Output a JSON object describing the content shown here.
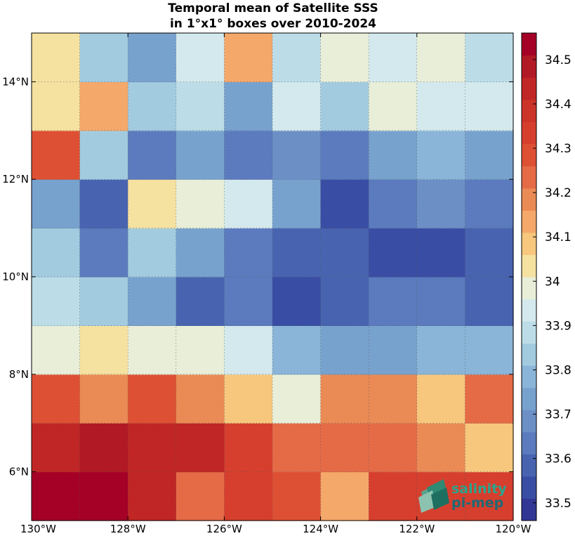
{
  "chart_data": {
    "type": "heatmap",
    "title_lines": [
      "Temporal mean of Satellite SSS",
      "in 1°x1° boxes over 2010-2024"
    ],
    "x": [
      -130,
      -129,
      -128,
      -127,
      -126,
      -125,
      -124,
      -123,
      -122,
      -121,
      -120
    ],
    "y": [
      5,
      6,
      7,
      8,
      9,
      10,
      11,
      12,
      13,
      14,
      15
    ],
    "xlim": [
      -130,
      -120
    ],
    "ylim": [
      5,
      15
    ],
    "x_ticks": [
      -130,
      -128,
      -126,
      -124,
      -122,
      -120
    ],
    "x_tick_labels": [
      "130°W",
      "128°W",
      "126°W",
      "124°W",
      "122°W",
      "120°W"
    ],
    "y_ticks": [
      6,
      8,
      10,
      12,
      14
    ],
    "y_tick_labels": [
      "6°N",
      "8°N",
      "10°N",
      "12°N",
      "14°N"
    ],
    "grid": true,
    "values": [
      [
        34.52,
        34.56,
        34.42,
        34.22,
        34.36,
        34.29,
        34.12,
        34.36,
        34.35,
        34.36
      ],
      [
        34.42,
        34.5,
        34.42,
        34.46,
        34.36,
        34.22,
        34.22,
        34.22,
        34.17,
        34.11
      ],
      [
        34.29,
        34.17,
        34.29,
        34.17,
        34.11,
        33.98,
        34.17,
        34.17,
        34.11,
        34.22
      ],
      [
        33.98,
        34.04,
        33.98,
        33.98,
        33.92,
        33.78,
        33.74,
        33.74,
        33.8,
        33.8
      ],
      [
        33.88,
        33.82,
        33.74,
        33.56,
        33.66,
        33.52,
        33.58,
        33.64,
        33.62,
        33.58
      ],
      [
        33.82,
        33.66,
        33.82,
        33.74,
        33.64,
        33.6,
        33.56,
        33.52,
        33.52,
        33.58
      ],
      [
        33.76,
        33.6,
        34.05,
        33.98,
        33.92,
        33.76,
        33.52,
        33.66,
        33.68,
        33.62
      ],
      [
        34.29,
        33.86,
        33.66,
        33.74,
        33.66,
        33.68,
        33.66,
        33.74,
        33.78,
        33.72
      ],
      [
        34.05,
        34.12,
        33.82,
        33.9,
        33.74,
        33.92,
        33.82,
        33.98,
        33.92,
        33.92
      ],
      [
        34.05,
        33.86,
        33.74,
        33.92,
        34.12,
        33.9,
        33.98,
        33.92,
        33.98,
        33.9
      ]
    ],
    "colorbar": {
      "vmin": 33.46,
      "vmax": 34.56,
      "bins": 22,
      "ticks": [
        33.5,
        33.6,
        33.7,
        33.8,
        33.9,
        34.0,
        34.1,
        34.2,
        34.3,
        34.4,
        34.5
      ],
      "tick_labels": [
        "33.5",
        "33.6",
        "33.7",
        "33.8",
        "33.9",
        "34",
        "34.1",
        "34.2",
        "34.3",
        "34.4",
        "34.5"
      ],
      "colors": [
        "#313695",
        "#3a4da4",
        "#4864b0",
        "#5b7bbe",
        "#6c8fc6",
        "#78a2ce",
        "#8ab5d8",
        "#a2cbe0",
        "#bcdde8",
        "#d3e9ed",
        "#e8eed8",
        "#f5e1a0",
        "#f6c77d",
        "#f4a86a",
        "#ea8a55",
        "#e56b47",
        "#de5033",
        "#d63f2e",
        "#cc3329",
        "#c02625",
        "#b11925",
        "#a50026"
      ]
    },
    "logo_lines": [
      "salinity",
      "pi-mep"
    ]
  }
}
